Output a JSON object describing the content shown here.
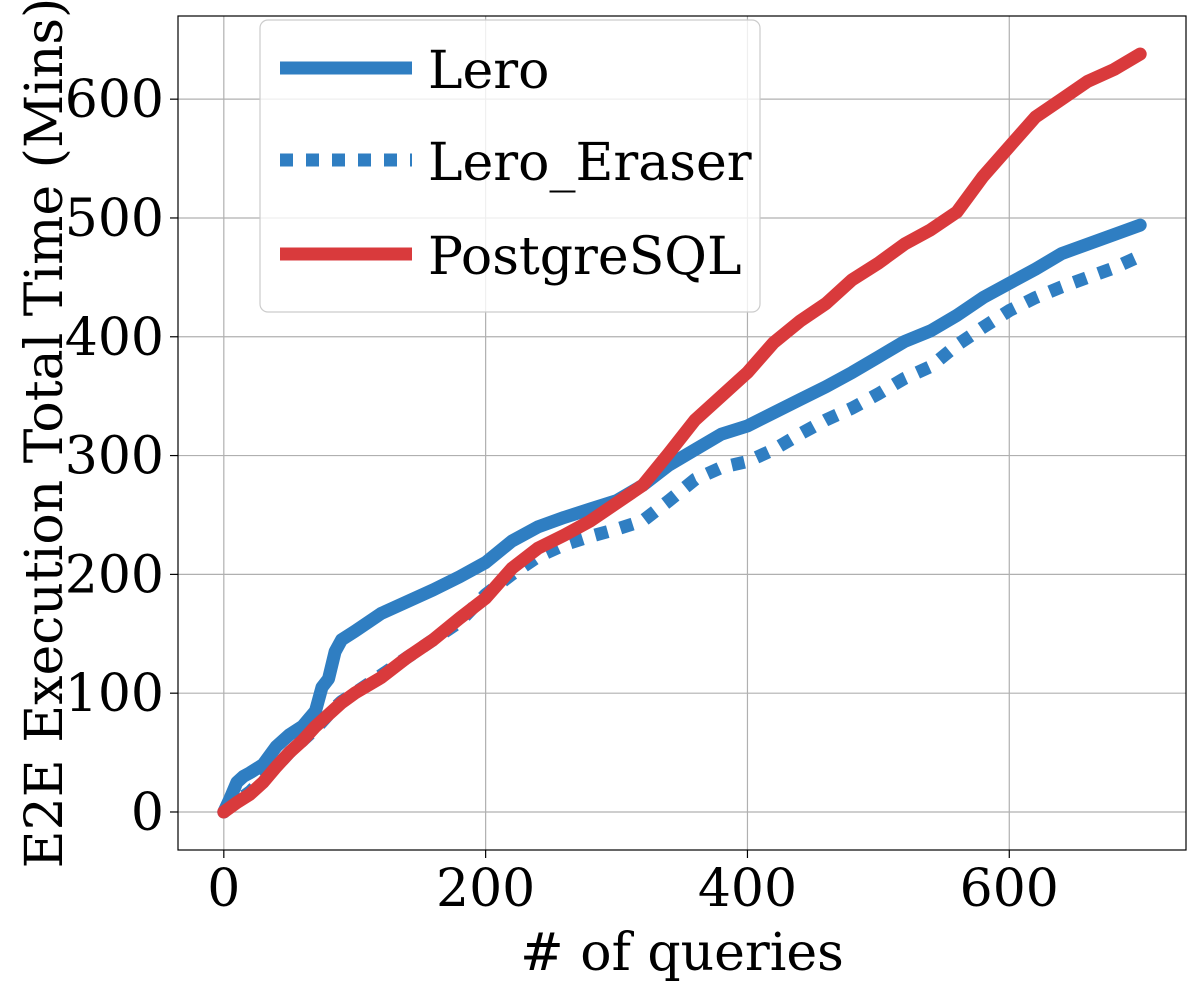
{
  "chart_data": {
    "type": "line",
    "title": "",
    "xlabel": "# of queries",
    "ylabel": "E2E Execution Total Time (Mins)",
    "xlim": [
      -35,
      735
    ],
    "ylim": [
      -32,
      670
    ],
    "xticks": [
      0,
      200,
      400,
      600
    ],
    "yticks": [
      0,
      100,
      200,
      300,
      400,
      500,
      600
    ],
    "grid": true,
    "legend_position": "top-left",
    "series": [
      {
        "name": "Lero",
        "color": "#2f7ec2",
        "style": "solid",
        "x": [
          0,
          5,
          10,
          15,
          20,
          30,
          40,
          50,
          60,
          70,
          75,
          80,
          85,
          90,
          100,
          120,
          140,
          160,
          180,
          200,
          220,
          240,
          260,
          280,
          300,
          320,
          340,
          360,
          380,
          400,
          420,
          440,
          460,
          480,
          500,
          520,
          540,
          560,
          580,
          600,
          620,
          640,
          660,
          680,
          700
        ],
        "y": [
          0,
          12,
          25,
          30,
          33,
          40,
          55,
          65,
          72,
          85,
          105,
          112,
          135,
          145,
          152,
          167,
          177,
          187,
          198,
          210,
          228,
          240,
          248,
          255,
          262,
          275,
          292,
          305,
          318,
          325,
          336,
          347,
          358,
          370,
          383,
          396,
          405,
          418,
          433,
          445,
          457,
          470,
          478,
          486,
          494
        ]
      },
      {
        "name": "Lero_Eraser",
        "color": "#2f7ec2",
        "style": "dotted",
        "x": [
          0,
          5,
          10,
          15,
          20,
          30,
          40,
          50,
          60,
          70,
          75,
          80,
          85,
          90,
          100,
          120,
          140,
          160,
          180,
          200,
          220,
          240,
          260,
          280,
          300,
          320,
          340,
          360,
          380,
          400,
          420,
          440,
          460,
          480,
          500,
          520,
          540,
          560,
          580,
          600,
          620,
          640,
          660,
          680,
          700
        ],
        "y": [
          0,
          5,
          10,
          13,
          17,
          28,
          38,
          50,
          60,
          70,
          76,
          82,
          88,
          93,
          100,
          115,
          130,
          145,
          160,
          183,
          200,
          215,
          225,
          232,
          238,
          245,
          262,
          280,
          290,
          295,
          305,
          318,
          330,
          340,
          352,
          365,
          375,
          393,
          408,
          422,
          433,
          442,
          450,
          458,
          468
        ]
      },
      {
        "name": "PostgreSQL",
        "color": "#d93a3c",
        "style": "solid",
        "x": [
          0,
          10,
          20,
          30,
          40,
          50,
          60,
          70,
          80,
          90,
          100,
          120,
          140,
          160,
          180,
          200,
          220,
          240,
          260,
          280,
          300,
          320,
          340,
          360,
          380,
          400,
          420,
          440,
          460,
          480,
          500,
          520,
          540,
          560,
          580,
          600,
          620,
          640,
          660,
          680,
          700
        ],
        "y": [
          0,
          8,
          15,
          25,
          38,
          50,
          60,
          72,
          82,
          92,
          100,
          113,
          130,
          145,
          163,
          180,
          205,
          222,
          233,
          245,
          260,
          275,
          302,
          330,
          350,
          370,
          395,
          413,
          428,
          448,
          462,
          478,
          490,
          505,
          535,
          560,
          585,
          600,
          615,
          625,
          638
        ]
      }
    ]
  }
}
